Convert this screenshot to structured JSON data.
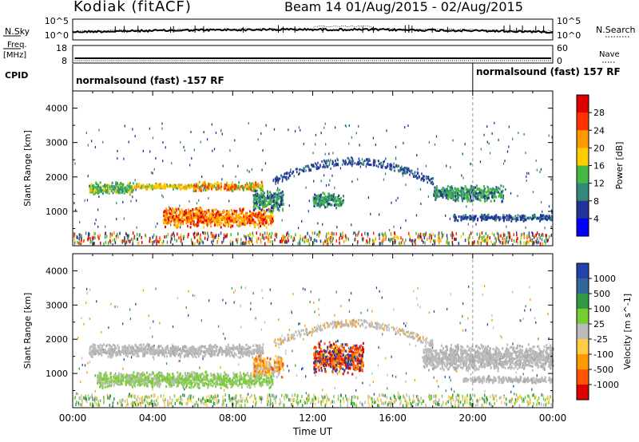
{
  "header": {
    "station": "Kodiak (fitACF)",
    "beam_dates": "Beam 14 01/Aug/2015 - 02/Aug/2015"
  },
  "sky_panel": {
    "left_label": "N.Sky",
    "left_ticks": [
      "10^5",
      "10^0"
    ],
    "right_label": "N.Search",
    "right_ticks": [
      "10^5",
      "10^0"
    ]
  },
  "freq_panel": {
    "left_label_line1": "Freq.",
    "left_label_line2": "[MHz]",
    "left_ticks": [
      "18",
      "8"
    ],
    "right_label": "Nave",
    "right_ticks": [
      "60",
      "0"
    ]
  },
  "cpid_panel": {
    "label": "CPID",
    "mode1": "normalsound (fast) -157 RF",
    "mode2": "normalsound (fast) 157 RF"
  },
  "chart_data": [
    {
      "type": "heatmap",
      "quantity": "Power",
      "ylabel": "Slant Range [km]",
      "xlabel": "Time UT",
      "ylim": [
        0,
        4500
      ],
      "yticks": [
        "1000",
        "2000",
        "3000",
        "4000"
      ],
      "colorbar_label": "Power [dB]",
      "colorbar_ticks": [
        "28",
        "24",
        "20",
        "16",
        "12",
        "8",
        "4"
      ],
      "colorbar_colors": [
        "#dd0000",
        "#ff3300",
        "#ff9900",
        "#ffcc00",
        "#44b844",
        "#338877",
        "#223399",
        "#0000ff"
      ],
      "regions": [
        {
          "t": [
            0.8,
            3.0
          ],
          "r": [
            1500,
            1900
          ],
          "level": "green-yellow"
        },
        {
          "t": [
            3.0,
            6.0
          ],
          "r": [
            1650,
            1850
          ],
          "level": "yellow-orange"
        },
        {
          "t": [
            6.0,
            9.5
          ],
          "r": [
            1600,
            1900
          ],
          "level": "orange-red"
        },
        {
          "t": [
            4.5,
            10.0
          ],
          "r": [
            550,
            1150
          ],
          "level": "red-orange"
        },
        {
          "t": [
            9.0,
            10.5
          ],
          "r": [
            1000,
            1700
          ],
          "level": "green"
        },
        {
          "t": [
            12.0,
            13.5
          ],
          "r": [
            1100,
            1600
          ],
          "level": "green"
        },
        {
          "t": [
            18.0,
            21.5
          ],
          "r": [
            1300,
            1800
          ],
          "level": "green"
        },
        {
          "t": [
            19.0,
            24.0
          ],
          "r": [
            750,
            950
          ],
          "level": "blue-green"
        }
      ]
    },
    {
      "type": "heatmap",
      "quantity": "Velocity",
      "ylabel": "Slant Range [km]",
      "xlabel": "Time UT",
      "ylim": [
        0,
        4500
      ],
      "yticks": [
        "1000",
        "2000",
        "3000",
        "4000"
      ],
      "colorbar_label": "Velocity [m s^-1]",
      "colorbar_ticks": [
        "1000",
        "500",
        "100",
        "25",
        "-25",
        "-100",
        "-500",
        "-1000"
      ],
      "colorbar_colors": [
        "#2244aa",
        "#336699",
        "#339944",
        "#77cc33",
        "#bbbbbb",
        "#ffcc44",
        "#ff9900",
        "#ff5500",
        "#dd0000"
      ],
      "regions": [
        {
          "t": [
            0.8,
            9.5
          ],
          "r": [
            1500,
            1900
          ],
          "level": "grey"
        },
        {
          "t": [
            1.2,
            10.0
          ],
          "r": [
            600,
            1100
          ],
          "level": "green-grey"
        },
        {
          "t": [
            9.0,
            10.5
          ],
          "r": [
            900,
            1600
          ],
          "level": "orange"
        },
        {
          "t": [
            12.0,
            14.5
          ],
          "r": [
            1000,
            2000
          ],
          "level": "orange-red"
        },
        {
          "t": [
            17.5,
            24.0
          ],
          "r": [
            1100,
            1900
          ],
          "level": "grey"
        },
        {
          "t": [
            19.5,
            24.0
          ],
          "r": [
            750,
            950
          ],
          "level": "grey"
        }
      ]
    }
  ],
  "time_axis": {
    "ticks": [
      "00:00",
      "04:00",
      "08:00",
      "12:00",
      "16:00",
      "20:00",
      "00:00"
    ],
    "label": "Time UT"
  }
}
